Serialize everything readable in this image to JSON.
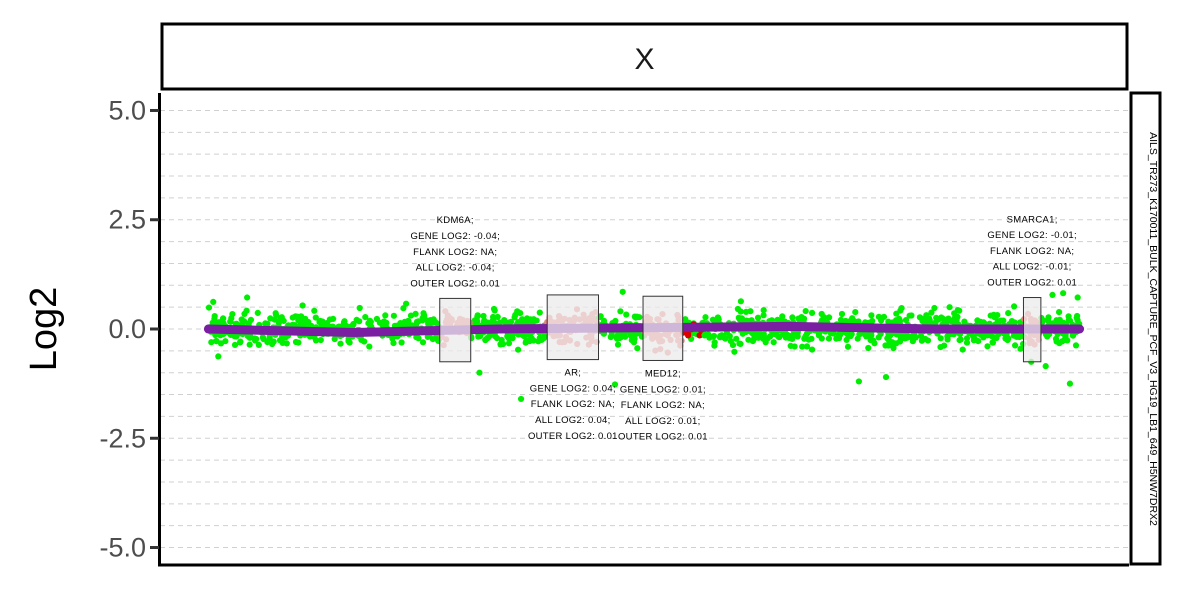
{
  "chart_data": {
    "type": "scatter",
    "facet_label": "X",
    "side_label": "AILS_TR273_K170011_BULK_CAPTURE_PCF_V3_HG19_LB1_649_H5NW7DRX2",
    "ylabel": "Log2",
    "ylim": [
      -5.4,
      5.4
    ],
    "yticks": [
      5.0,
      2.5,
      0.0,
      -2.5,
      -5.0
    ],
    "ytick_labels": [
      "5.0",
      "2.5",
      "0.0",
      "-2.5",
      "-5.0"
    ],
    "xlim": [
      0,
      1
    ],
    "grid": true,
    "colors": {
      "points": "#00ee00",
      "gene_points": "#f08080",
      "highlight_points": "#dd0000",
      "segment_line": "#7b1fa2",
      "gene_box_fill": "#ebebeb",
      "gene_box_stroke": "#333333"
    },
    "segments": [
      {
        "x": [
          0.05,
          0.2,
          0.35,
          0.5,
          0.65,
          0.8,
          0.95
        ],
        "y": [
          0.0,
          -0.08,
          0.0,
          0.03,
          0.06,
          0.0,
          0.0
        ]
      }
    ],
    "genes": [
      {
        "name": "KDM6A",
        "x_start": 0.289,
        "x_end": 0.321,
        "y_low": -0.75,
        "y_high": 0.7,
        "label_position": "above",
        "lines": [
          "KDM6A;",
          "GENE LOG2: -0.04;",
          "FLANK LOG2: NA;",
          "ALL LOG2: -0.04;",
          "OUTER LOG2: 0.01"
        ]
      },
      {
        "name": "AR",
        "x_start": 0.4,
        "x_end": 0.453,
        "y_low": -0.7,
        "y_high": 0.78,
        "label_position": "below",
        "lines": [
          "AR;",
          "GENE LOG2: 0.04;",
          "FLANK LOG2: NA;",
          "ALL LOG2: 0.04;",
          "OUTER LOG2: 0.01"
        ]
      },
      {
        "name": "MED12",
        "x_start": 0.499,
        "x_end": 0.54,
        "y_low": -0.72,
        "y_high": 0.75,
        "label_position": "below",
        "lines": [
          "MED12;",
          "GENE LOG2: 0.01;",
          "FLANK LOG2: NA;",
          "ALL LOG2: 0.01;",
          "OUTER LOG2: 0.01"
        ]
      },
      {
        "name": "SMARCA1",
        "x_start": 0.892,
        "x_end": 0.91,
        "y_low": -0.75,
        "y_high": 0.72,
        "label_position": "above",
        "lines": [
          "SMARCA1;",
          "GENE LOG2: -0.01;",
          "FLANK LOG2: NA;",
          "ALL LOG2: -0.01;",
          "OUTER LOG2: 0.01"
        ]
      }
    ],
    "points_summary": {
      "x_range": [
        0.05,
        0.95
      ],
      "count": 1400,
      "y_center": 0.0,
      "y_spread": 0.18
    },
    "outlier_points": [
      {
        "x": 0.09,
        "y": 0.72
      },
      {
        "x": 0.055,
        "y": 0.62
      },
      {
        "x": 0.33,
        "y": -1.0
      },
      {
        "x": 0.373,
        "y": -1.6
      },
      {
        "x": 0.478,
        "y": 0.85
      },
      {
        "x": 0.47,
        "y": -1.27
      },
      {
        "x": 0.75,
        "y": -1.1
      },
      {
        "x": 0.722,
        "y": -1.2
      },
      {
        "x": 0.915,
        "y": -0.85
      },
      {
        "x": 0.933,
        "y": 0.82
      },
      {
        "x": 0.94,
        "y": -1.25
      },
      {
        "x": 0.922,
        "y": 0.78
      },
      {
        "x": 0.948,
        "y": 0.72
      },
      {
        "x": 0.9,
        "y": -0.75
      },
      {
        "x": 0.8,
        "y": 0.48
      }
    ]
  }
}
